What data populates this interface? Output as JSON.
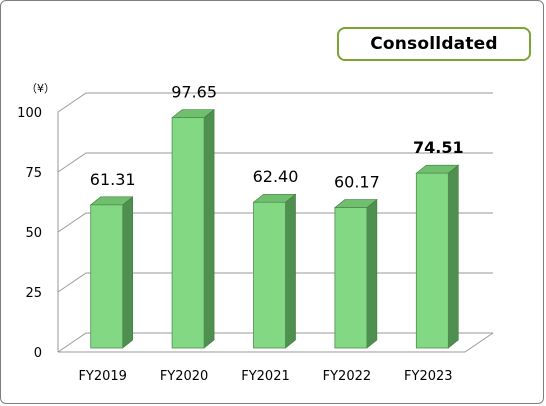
{
  "badge": {
    "label": "Consolldated"
  },
  "chart_data": {
    "type": "bar",
    "unit_label": "（¥）",
    "categories": [
      "FY2019",
      "FY2020",
      "FY2021",
      "FY2022",
      "FY2023"
    ],
    "values": [
      61.31,
      97.65,
      62.4,
      60.17,
      74.51
    ],
    "data_labels": [
      "61.31",
      "97.65",
      "62.40",
      "60.17",
      "74.51"
    ],
    "highlight_index": 4,
    "highlight_color": "#ff0000",
    "bar_color": "#83d883",
    "bar_side_color": "#4f8f4f",
    "ylim": [
      0,
      100
    ],
    "yticks": [
      0,
      25,
      50,
      75,
      100
    ],
    "grid": true
  }
}
